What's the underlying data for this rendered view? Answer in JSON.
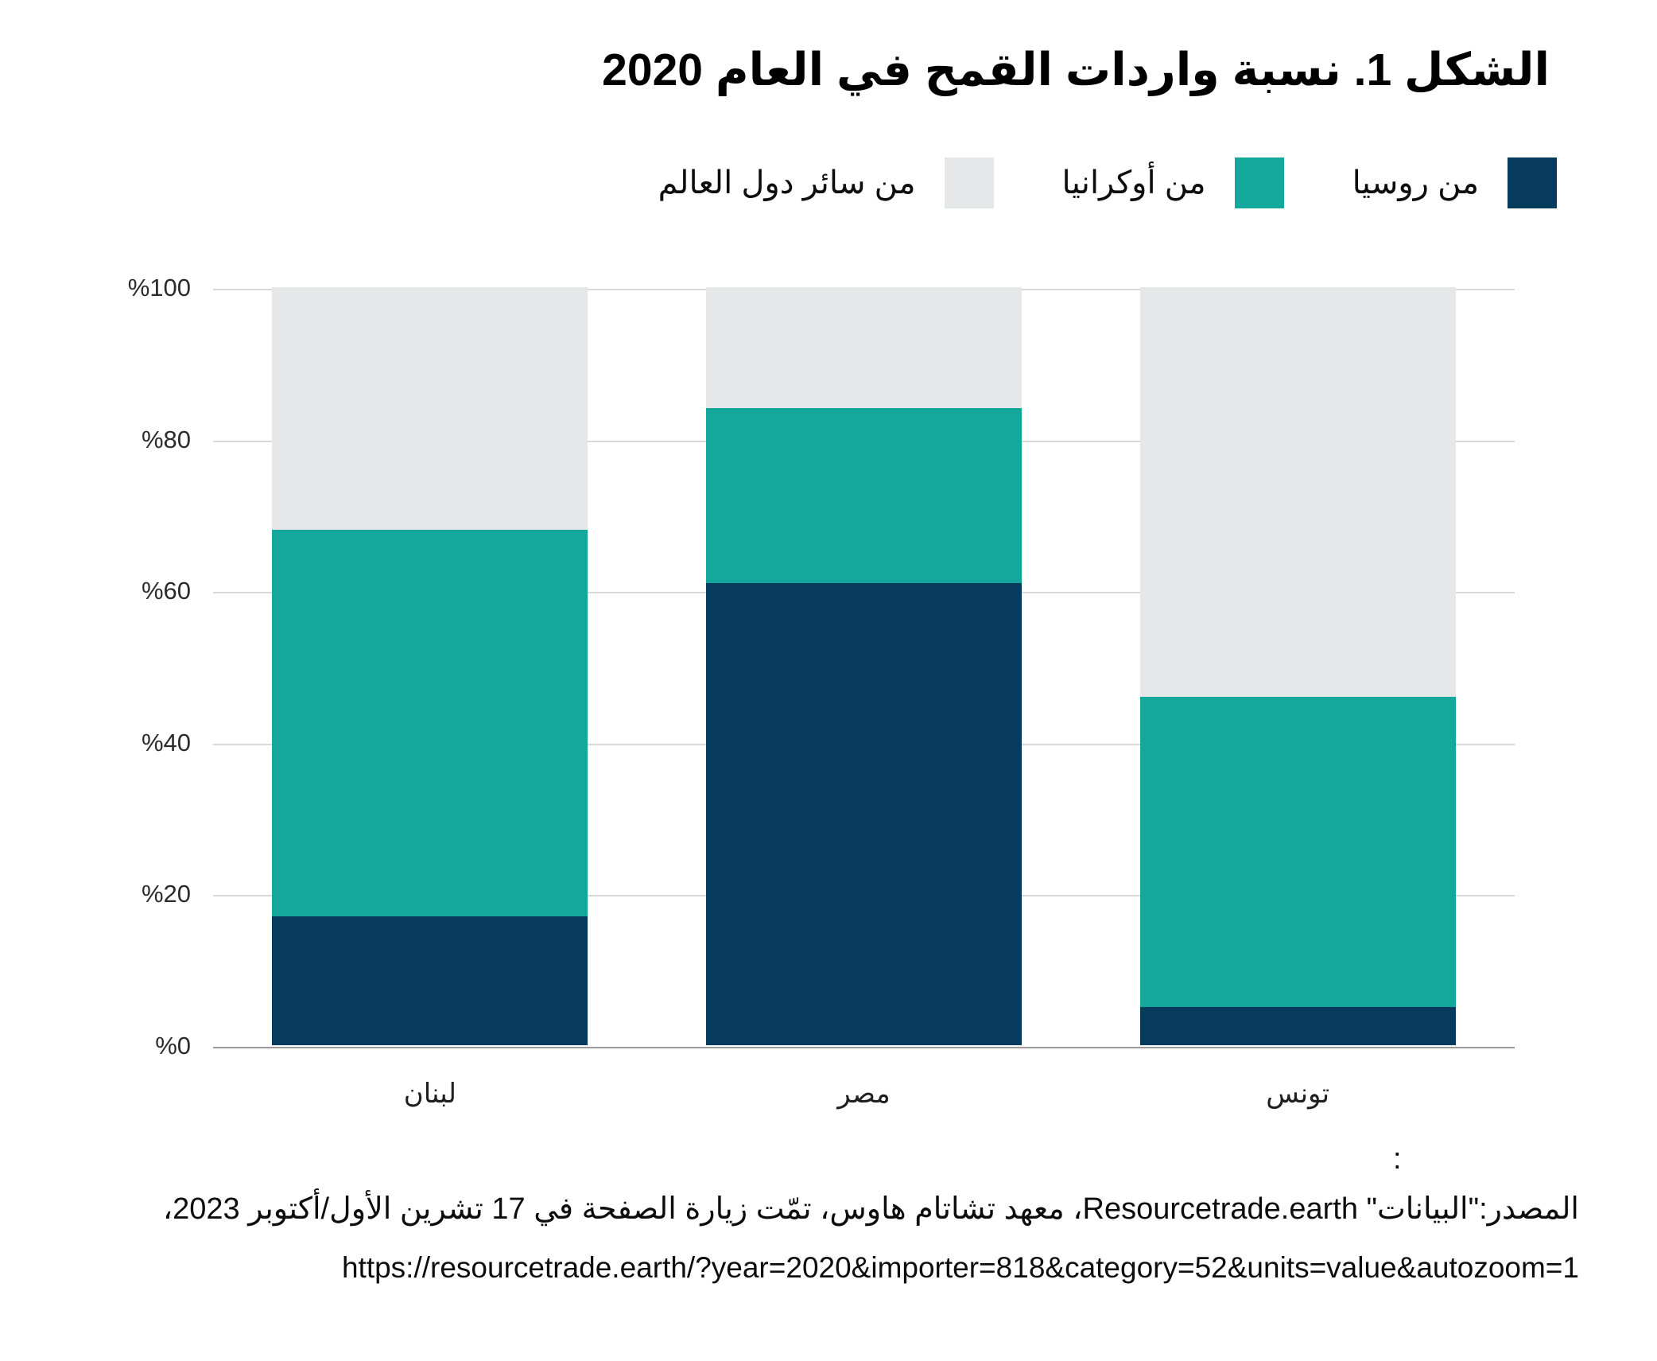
{
  "title": "الشكل 1. نسبة واردات القمح في العام 2020",
  "chart_data": {
    "type": "bar",
    "stacked": true,
    "title": "الشكل 1. نسبة واردات القمح في العام 2020",
    "categories": [
      "لبنان",
      "مصر",
      "تونس"
    ],
    "series": [
      {
        "name": "من روسيا",
        "color": "#063B5E",
        "values": [
          17,
          61,
          5
        ]
      },
      {
        "name": "من أوكرانيا",
        "color": "#14A79C",
        "values": [
          51,
          23,
          41
        ]
      },
      {
        "name": "من سائر دول العالم",
        "color": "#E6E7E8",
        "values": [
          32,
          16,
          54
        ]
      }
    ],
    "xlabel": "",
    "ylabel": "",
    "ylim": [
      0,
      100
    ],
    "yticks": [
      {
        "value": 0,
        "label": "%0"
      },
      {
        "value": 20,
        "label": "%20"
      },
      {
        "value": 40,
        "label": "%40"
      },
      {
        "value": 60,
        "label": "%60"
      },
      {
        "value": 80,
        "label": "%80"
      },
      {
        "value": 100,
        "label": "%100"
      }
    ],
    "grid": true,
    "legend_position": "top-right"
  },
  "colors": {
    "russia": "#063B5E",
    "ukraine": "#14A79C",
    "world": "#E6E7E8",
    "gridline": "#d9d9d9",
    "axis_line": "#9b9b9b"
  },
  "source": {
    "colon": ":",
    "line1": "المصدر:\"البيانات\" Resourcetrade.earth، معهد تشاتام هاوس، تمّت زيارة الصفحة في 17 تشرين الأول/أكتوبر 2023،",
    "line2": "https://resourcetrade.earth/?year=2020&importer=818&category=52&units=value&autozoom=1"
  }
}
